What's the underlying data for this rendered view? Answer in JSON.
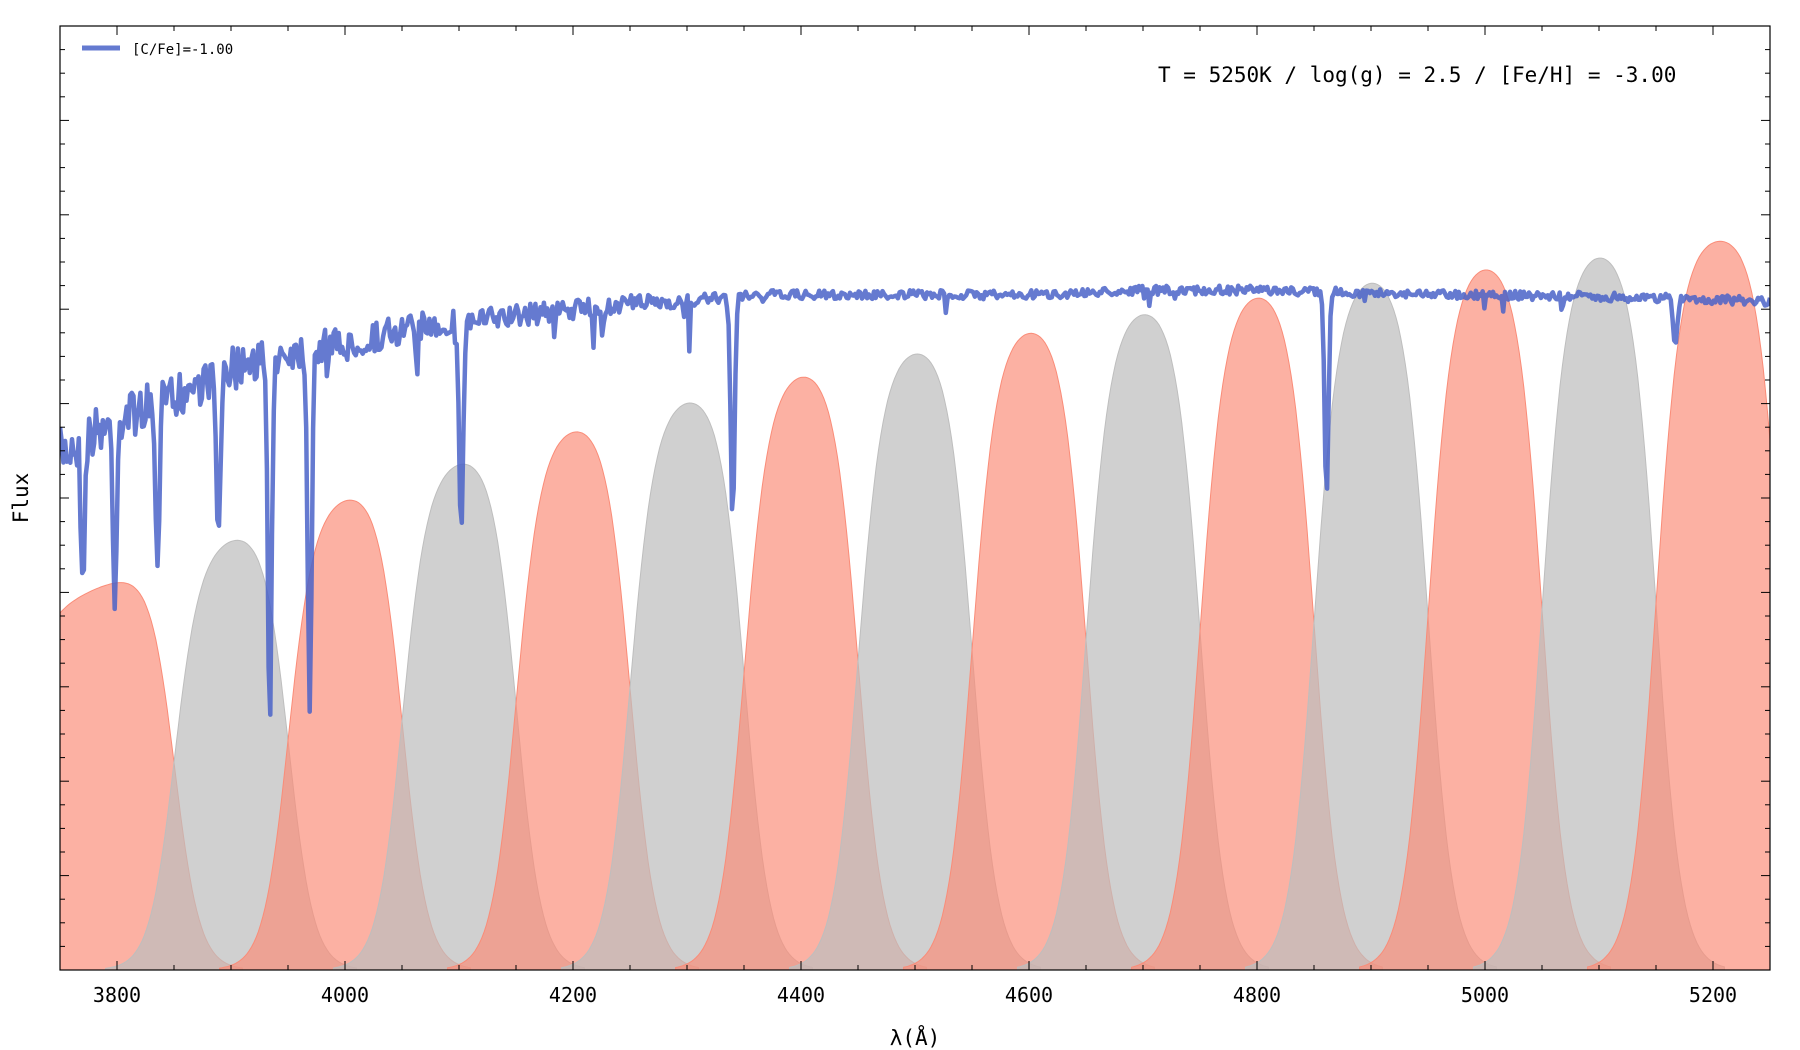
{
  "chart_data": {
    "type": "line",
    "title": "",
    "xlabel": "λ(Å)",
    "ylabel": "Flux",
    "xlim": [
      3750,
      5250
    ],
    "ylim": [
      0.0,
      1.0
    ],
    "x_ticks": [
      3800,
      4000,
      4200,
      4400,
      4600,
      4800,
      5000,
      5200
    ],
    "x_tick_labels": [
      "3800",
      "4000",
      "4200",
      "4400",
      "4600",
      "4800",
      "5000",
      "5200"
    ],
    "y_tick_labels_shown": false,
    "grid": false,
    "annotation": "T = 5250K / log(g) = 2.5 / [Fe/H] = -3.00",
    "legend": {
      "placement": "top-left",
      "entries": [
        "[C/Fe]=-1.00"
      ]
    },
    "colors": {
      "spectrum": "#4a63c8",
      "filter_a": "#fa8c78",
      "filter_b": "#bebebe"
    },
    "filter_bands": {
      "shape": "top-hat with smooth edges, top follows the stellar continuum",
      "width_angstrom": 100,
      "spacing_angstrom": 100,
      "colors_alternate": [
        "filter_a",
        "filter_b"
      ],
      "bands": [
        {
          "start": 3710,
          "end": 3850,
          "color": "filter_a"
        },
        {
          "start": 3850,
          "end": 3950,
          "color": "filter_b"
        },
        {
          "start": 3950,
          "end": 4050,
          "color": "filter_a"
        },
        {
          "start": 4050,
          "end": 4150,
          "color": "filter_b"
        },
        {
          "start": 4150,
          "end": 4250,
          "color": "filter_a"
        },
        {
          "start": 4250,
          "end": 4350,
          "color": "filter_b"
        },
        {
          "start": 4350,
          "end": 4450,
          "color": "filter_a"
        },
        {
          "start": 4450,
          "end": 4550,
          "color": "filter_b"
        },
        {
          "start": 4550,
          "end": 4650,
          "color": "filter_a"
        },
        {
          "start": 4650,
          "end": 4750,
          "color": "filter_b"
        },
        {
          "start": 4750,
          "end": 4850,
          "color": "filter_a"
        },
        {
          "start": 4850,
          "end": 4950,
          "color": "filter_b"
        },
        {
          "start": 4950,
          "end": 5050,
          "color": "filter_a"
        },
        {
          "start": 5050,
          "end": 5150,
          "color": "filter_b"
        },
        {
          "start": 5150,
          "end": 5260,
          "color": "filter_a"
        }
      ]
    },
    "series": [
      {
        "name": "[C/Fe]=-1.00",
        "continuum": [
          [
            3750,
            0.575
          ],
          [
            3800,
            0.61
          ],
          [
            3850,
            0.63
          ],
          [
            3900,
            0.66
          ],
          [
            3950,
            0.675
          ],
          [
            4000,
            0.68
          ],
          [
            4050,
            0.695
          ],
          [
            4100,
            0.7
          ],
          [
            4150,
            0.705
          ],
          [
            4200,
            0.71
          ],
          [
            4250,
            0.715
          ],
          [
            4300,
            0.715
          ],
          [
            4350,
            0.72
          ],
          [
            4400,
            0.72
          ],
          [
            4450,
            0.72
          ],
          [
            4500,
            0.72
          ],
          [
            4600,
            0.72
          ],
          [
            4700,
            0.725
          ],
          [
            4800,
            0.725
          ],
          [
            4900,
            0.722
          ],
          [
            5000,
            0.72
          ],
          [
            5100,
            0.718
          ],
          [
            5200,
            0.715
          ],
          [
            5250,
            0.713
          ]
        ],
        "absorption_lines": [
          {
            "x": 3770,
            "depth": 0.14
          },
          {
            "x": 3798,
            "depth": 0.18
          },
          {
            "x": 3835,
            "depth": 0.16
          },
          {
            "x": 3889,
            "depth": 0.19
          },
          {
            "x": 3934,
            "depth": 0.4
          },
          {
            "x": 3969,
            "depth": 0.37
          },
          {
            "x": 4102,
            "depth": 0.22
          },
          {
            "x": 4226,
            "depth": 0.03
          },
          {
            "x": 4340,
            "depth": 0.24
          },
          {
            "x": 4861,
            "depth": 0.22
          },
          {
            "x": 5167,
            "depth": 0.05
          }
        ]
      }
    ]
  }
}
